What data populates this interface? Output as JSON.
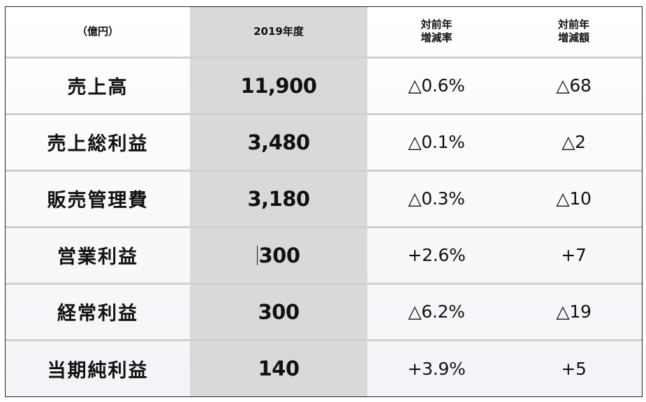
{
  "header": {
    "unit_label": "（億円）",
    "year_label": "2019年度",
    "rate_label_line1": "対前年",
    "rate_label_line2": "増減率",
    "amount_label_line1": "対前年",
    "amount_label_line2": "増減額"
  },
  "rows": [
    {
      "label": "売上高",
      "value": "11,900",
      "rate": "△0.6%",
      "amount": "△68"
    },
    {
      "label": "売上総利益",
      "value": "3,480",
      "rate": "△0.1%",
      "amount": "△2"
    },
    {
      "label": "販売管理費",
      "value": "3,180",
      "rate": "△0.3%",
      "amount": "△10"
    },
    {
      "label": "営業利益",
      "value": "300",
      "rate": "+2.6%",
      "amount": "+7"
    },
    {
      "label": "経常利益",
      "value": "300",
      "rate": "△6.2%",
      "amount": "△19"
    },
    {
      "label": "当期純利益",
      "value": "140",
      "rate": "+3.9%",
      "amount": "+5"
    }
  ],
  "colors": {
    "highlight_column": "#d9d9d9",
    "row_divider": "#d0d0d0",
    "border": "#222222"
  }
}
